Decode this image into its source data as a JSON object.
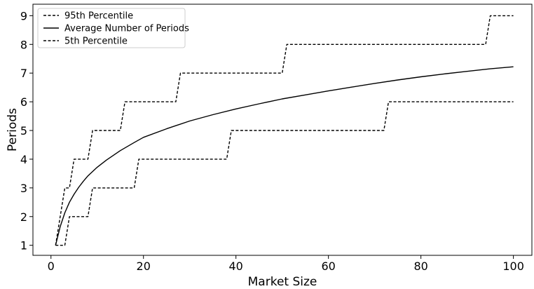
{
  "chart_data": {
    "type": "line",
    "title": "",
    "xlabel": "Market Size",
    "ylabel": "Periods",
    "xlim": [
      -3.9,
      104
    ],
    "ylim": [
      0.65,
      9.4
    ],
    "xticks": [
      0,
      20,
      40,
      60,
      80,
      100
    ],
    "yticks": [
      1,
      2,
      3,
      4,
      5,
      6,
      7,
      8,
      9
    ],
    "grid": false,
    "legend_position": "top-left",
    "series": [
      {
        "name": "95th Percentile",
        "style": "dashed",
        "color": "#000000",
        "x": [
          1,
          2,
          3,
          4,
          5,
          8,
          9,
          15,
          16,
          27,
          28,
          50,
          51,
          94,
          95,
          100
        ],
        "y": [
          1,
          2,
          3,
          3,
          4,
          4,
          5,
          5,
          6,
          6,
          7,
          7,
          8,
          8,
          9,
          9
        ]
      },
      {
        "name": "Average Number of Periods",
        "style": "solid",
        "color": "#000000",
        "x": [
          1,
          2,
          3,
          4,
          5,
          6,
          7,
          8,
          10,
          12,
          15,
          18,
          20,
          25,
          30,
          35,
          40,
          45,
          50,
          55,
          60,
          65,
          70,
          75,
          80,
          85,
          90,
          95,
          100
        ],
        "y": [
          1.0,
          1.65,
          2.13,
          2.5,
          2.78,
          3.02,
          3.23,
          3.42,
          3.72,
          3.97,
          4.3,
          4.58,
          4.76,
          5.06,
          5.33,
          5.55,
          5.75,
          5.93,
          6.1,
          6.24,
          6.38,
          6.51,
          6.64,
          6.76,
          6.87,
          6.97,
          7.06,
          7.15,
          7.22
        ]
      },
      {
        "name": "5th Percentile",
        "style": "dashed",
        "color": "#000000",
        "x": [
          1,
          3,
          4,
          8,
          9,
          18,
          19,
          38,
          39,
          72,
          73,
          100
        ],
        "y": [
          1,
          1,
          2,
          2,
          3,
          3,
          4,
          4,
          5,
          5,
          6,
          6
        ]
      }
    ]
  }
}
